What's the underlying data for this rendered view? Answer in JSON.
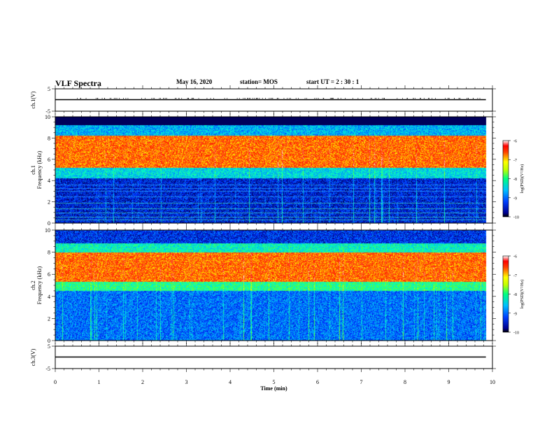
{
  "header": {
    "title": "VLF Spectra",
    "date": "May 16, 2020",
    "station": "station= MOS",
    "start_time": "start UT = 2 : 30 : 1"
  },
  "chart_data": [
    {
      "type": "line",
      "panel": "ch1-waveform",
      "ylabel": "ch.1(V)",
      "ylim": [
        -5,
        5
      ],
      "ytick_labels": [
        "5",
        "-5"
      ],
      "series": [
        {
          "x": [
            0,
            9.85
          ],
          "values": [
            0,
            0
          ]
        }
      ]
    },
    {
      "type": "heatmap",
      "panel": "ch1-spectrogram",
      "ylabel": "ch.1 Frequency (kHz)",
      "ylim": [
        0,
        10
      ],
      "yticks": [
        0,
        2,
        4,
        6,
        8,
        10
      ],
      "xlim": [
        0,
        10
      ],
      "data_end_min": 9.85,
      "colorbar": {
        "label": "log(PSD)(V²/Hz)",
        "range": [
          -10,
          -6
        ],
        "ticks": [
          -6,
          -7,
          -8,
          -9,
          -10
        ]
      },
      "bands": [
        {
          "from_khz": 0,
          "to_khz": 4.2,
          "log_psd": -9.6
        },
        {
          "from_khz": 4.2,
          "to_khz": 5.2,
          "log_psd": -8.7
        },
        {
          "from_khz": 5.2,
          "to_khz": 8.2,
          "log_psd": -6.9
        },
        {
          "from_khz": 8.2,
          "to_khz": 9.2,
          "log_psd": -8.9
        },
        {
          "from_khz": 9.2,
          "to_khz": 10,
          "log_psd": -10
        }
      ]
    },
    {
      "type": "heatmap",
      "panel": "ch2-spectrogram",
      "ylabel": "ch.2 Frequency (kHz)",
      "ylim": [
        0,
        10
      ],
      "yticks": [
        0,
        2,
        4,
        6,
        8,
        10
      ],
      "xlim": [
        0,
        10
      ],
      "data_end_min": 9.85,
      "colorbar": {
        "label": "log(PSD)(V²/Hz)",
        "range": [
          -10,
          -6
        ],
        "ticks": [
          -6,
          -7,
          -8,
          -9,
          -10
        ]
      },
      "bands": [
        {
          "from_khz": 0,
          "to_khz": 4.5,
          "log_psd": -9.2
        },
        {
          "from_khz": 4.5,
          "to_khz": 5.3,
          "log_psd": -8.3
        },
        {
          "from_khz": 5.3,
          "to_khz": 8.0,
          "log_psd": -6.9
        },
        {
          "from_khz": 8.0,
          "to_khz": 8.8,
          "log_psd": -8.5
        },
        {
          "from_khz": 8.8,
          "to_khz": 10,
          "log_psd": -9.5
        }
      ]
    },
    {
      "type": "line",
      "panel": "ch3-waveform",
      "ylabel": "ch.3(V)",
      "ylim": [
        -5,
        5
      ],
      "ytick_labels": [
        "5",
        "-5"
      ],
      "xlabel": "Time (min)",
      "xlim": [
        0,
        10
      ],
      "xticks": [
        0,
        1,
        2,
        3,
        4,
        5,
        6,
        7,
        8,
        9,
        10
      ],
      "series": [
        {
          "x": [
            0,
            9.85
          ],
          "values": [
            0,
            0
          ]
        }
      ]
    }
  ]
}
